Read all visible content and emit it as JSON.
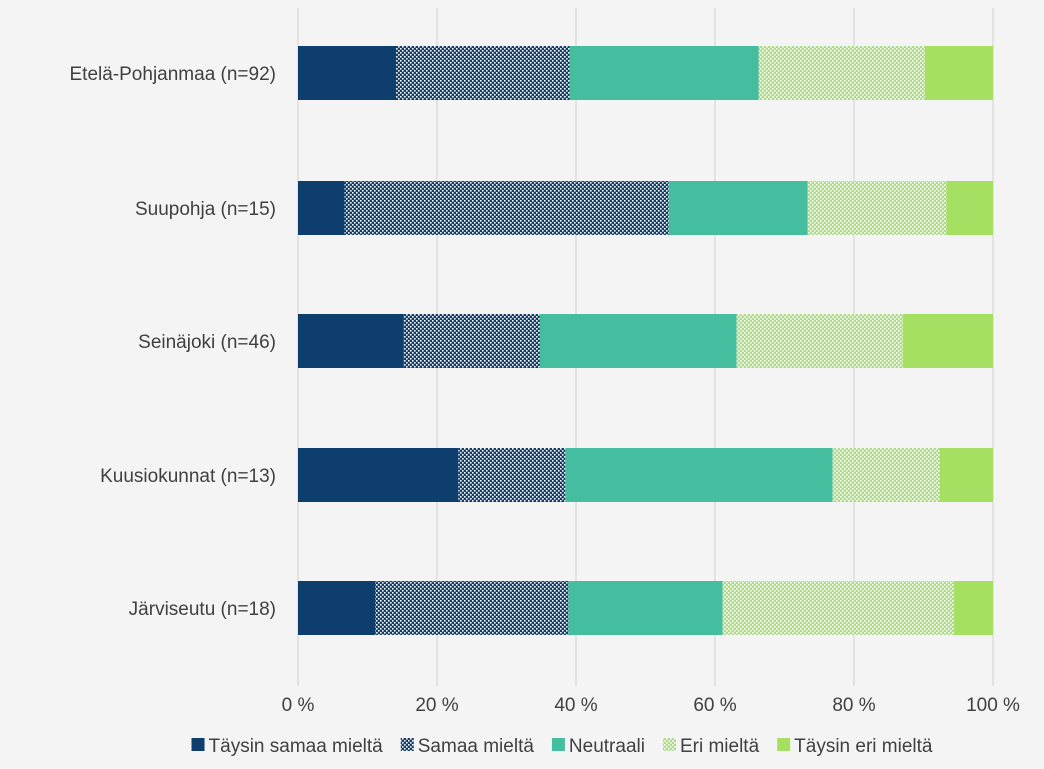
{
  "chart_data": {
    "type": "bar",
    "orientation": "horizontal",
    "stacked": "percent",
    "categories": [
      "Etelä-Pohjanmaa (n=92)",
      "Suupohja (n=15)",
      "Seinäjoki (n=46)",
      "Kuusiokunnat (n=13)",
      "Järviseutu (n=18)"
    ],
    "series": [
      {
        "name": "Täysin samaa mieltä",
        "color": "#0e3e6e",
        "pattern": "solid",
        "values": [
          14.1,
          6.7,
          15.2,
          23.1,
          11.1
        ]
      },
      {
        "name": "Samaa mieltä",
        "color": "#0e3e6e",
        "pattern": "dotted",
        "values": [
          25.0,
          46.7,
          19.6,
          15.4,
          27.8
        ]
      },
      {
        "name": "Neutraali",
        "color": "#45bd9f",
        "pattern": "solid",
        "values": [
          27.2,
          20.0,
          28.3,
          38.5,
          22.2
        ]
      },
      {
        "name": "Eri mieltä",
        "color": "#a9e07d",
        "pattern": "dotted",
        "values": [
          23.9,
          20.0,
          23.9,
          15.4,
          33.3
        ]
      },
      {
        "name": "Täysin eri mieltä",
        "color": "#a5e063",
        "pattern": "solid",
        "values": [
          9.8,
          6.7,
          13.0,
          7.7,
          5.6
        ]
      }
    ],
    "xlim": [
      0,
      100
    ],
    "xticks": [
      "0 %",
      "20 %",
      "40 %",
      "60 %",
      "80 %",
      "100 %"
    ],
    "grid": true,
    "legend": "bottom"
  }
}
